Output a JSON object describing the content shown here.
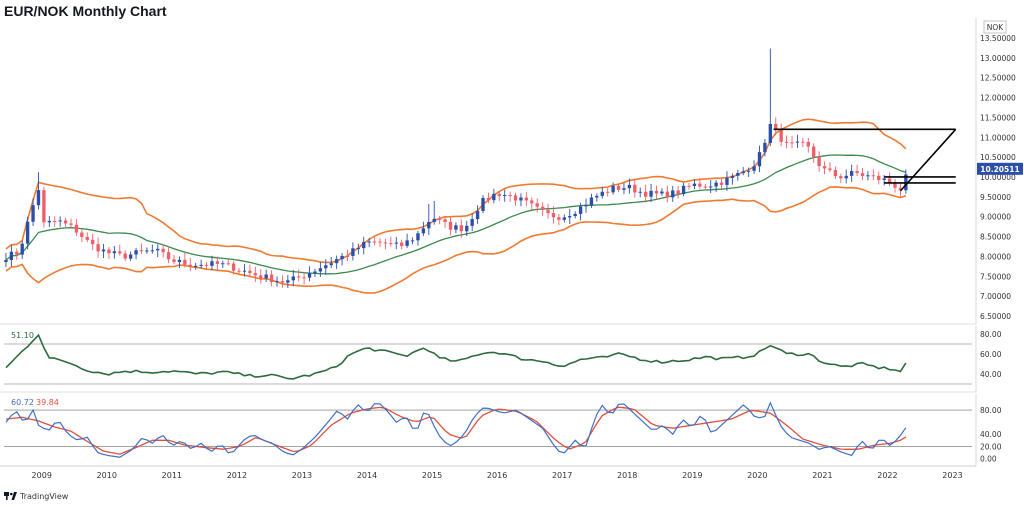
{
  "title": "EUR/NOK Monthly Chart",
  "currency_badge": "NOK",
  "last_price_label": "10.20511",
  "brand": "TradingView",
  "colors": {
    "up": "#2b4fa8",
    "down": "#ef5f6a",
    "bb_outer": "#f07a30",
    "bb_mid": "#3b8a4d",
    "rsi": "#2e6b3d",
    "stoch_k": "#3d6fc7",
    "stoch_d": "#e0503c",
    "levels": "#000000"
  },
  "chart_data": [
    {
      "type": "candlestick",
      "name": "price",
      "title": "EUR/NOK Monthly Chart",
      "x_labels": [
        "2009",
        "2010",
        "2011",
        "2012",
        "2013",
        "2014",
        "2015",
        "2016",
        "2017",
        "2018",
        "2019",
        "2020",
        "2021",
        "2022",
        "2023"
      ],
      "x_range": [
        2008.42,
        2023.3
      ],
      "y_ticks": [
        "13.50000",
        "13.00000",
        "12.50000",
        "12.00000",
        "11.50000",
        "11.00000",
        "10.50000",
        "10.00000",
        "9.50000",
        "9.00000",
        "8.50000",
        "8.00000",
        "7.50000",
        "7.00000",
        "6.50000"
      ],
      "ylim": [
        6.4,
        13.75
      ],
      "close_anchors": [
        [
          2008.45,
          8.0
        ],
        [
          2008.65,
          8.1
        ],
        [
          2008.85,
          9.2
        ],
        [
          2008.95,
          9.7
        ],
        [
          2009.0,
          8.8
        ],
        [
          2009.25,
          8.9
        ],
        [
          2009.5,
          8.7
        ],
        [
          2009.75,
          8.3
        ],
        [
          2010.0,
          8.1
        ],
        [
          2010.25,
          8.0
        ],
        [
          2010.5,
          8.1
        ],
        [
          2010.75,
          8.15
        ],
        [
          2011.0,
          7.9
        ],
        [
          2011.25,
          7.8
        ],
        [
          2011.5,
          7.8
        ],
        [
          2011.75,
          7.8
        ],
        [
          2012.0,
          7.7
        ],
        [
          2012.25,
          7.55
        ],
        [
          2012.5,
          7.45
        ],
        [
          2012.75,
          7.35
        ],
        [
          2013.0,
          7.5
        ],
        [
          2013.25,
          7.7
        ],
        [
          2013.5,
          7.9
        ],
        [
          2013.75,
          8.1
        ],
        [
          2014.0,
          8.35
        ],
        [
          2014.25,
          8.35
        ],
        [
          2014.5,
          8.25
        ],
        [
          2014.75,
          8.5
        ],
        [
          2015.0,
          9.0
        ],
        [
          2015.25,
          8.75
        ],
        [
          2015.5,
          8.7
        ],
        [
          2015.75,
          9.35
        ],
        [
          2016.0,
          9.6
        ],
        [
          2016.25,
          9.5
        ],
        [
          2016.5,
          9.3
        ],
        [
          2016.75,
          9.05
        ],
        [
          2017.0,
          9.0
        ],
        [
          2017.25,
          9.2
        ],
        [
          2017.5,
          9.5
        ],
        [
          2017.75,
          9.7
        ],
        [
          2018.0,
          9.75
        ],
        [
          2018.25,
          9.6
        ],
        [
          2018.5,
          9.55
        ],
        [
          2018.75,
          9.6
        ],
        [
          2019.0,
          9.8
        ],
        [
          2019.25,
          9.8
        ],
        [
          2019.5,
          9.9
        ],
        [
          2019.75,
          10.1
        ],
        [
          2020.0,
          10.4
        ],
        [
          2020.2,
          11.3
        ],
        [
          2020.45,
          10.8
        ],
        [
          2020.75,
          10.8
        ],
        [
          2021.0,
          10.2
        ],
        [
          2021.25,
          10.0
        ],
        [
          2021.5,
          10.1
        ],
        [
          2021.75,
          10.0
        ],
        [
          2022.0,
          9.9
        ],
        [
          2022.2,
          9.7
        ],
        [
          2022.35,
          10.2
        ]
      ],
      "overlays": [
        "Bollinger upper band",
        "Bollinger middle band",
        "Bollinger lower band"
      ],
      "horizontal_levels": [
        11.2,
        10.0,
        9.85
      ],
      "trend_line": [
        [
          2022.2,
          9.65
        ],
        [
          2023.05,
          11.2
        ]
      ]
    },
    {
      "type": "line",
      "name": "rsi",
      "value_label": "51.10",
      "y_ticks": [
        "80.00",
        "60.00",
        "40.00"
      ],
      "ylim": [
        26,
        84
      ],
      "reference_lines": [
        70,
        30
      ],
      "anchors": [
        [
          2008.45,
          46
        ],
        [
          2008.75,
          66
        ],
        [
          2008.95,
          80
        ],
        [
          2009.1,
          56
        ],
        [
          2009.4,
          52
        ],
        [
          2009.7,
          44
        ],
        [
          2010.0,
          40
        ],
        [
          2010.3,
          43
        ],
        [
          2010.7,
          42
        ],
        [
          2011.0,
          43
        ],
        [
          2011.4,
          40
        ],
        [
          2011.8,
          42
        ],
        [
          2012.2,
          38
        ],
        [
          2012.5,
          39
        ],
        [
          2012.8,
          35
        ],
        [
          2013.2,
          40
        ],
        [
          2013.5,
          46
        ],
        [
          2013.75,
          60
        ],
        [
          2014.0,
          66
        ],
        [
          2014.3,
          62
        ],
        [
          2014.6,
          58
        ],
        [
          2014.9,
          67
        ],
        [
          2015.1,
          56
        ],
        [
          2015.4,
          52
        ],
        [
          2015.75,
          61
        ],
        [
          2016.0,
          62
        ],
        [
          2016.4,
          55
        ],
        [
          2016.8,
          52
        ],
        [
          2017.0,
          47
        ],
        [
          2017.3,
          55
        ],
        [
          2017.6,
          56
        ],
        [
          2017.9,
          60
        ],
        [
          2018.2,
          55
        ],
        [
          2018.5,
          52
        ],
        [
          2018.9,
          54
        ],
        [
          2019.2,
          57
        ],
        [
          2019.5,
          55
        ],
        [
          2019.8,
          57
        ],
        [
          2020.0,
          60
        ],
        [
          2020.2,
          69
        ],
        [
          2020.45,
          60
        ],
        [
          2020.8,
          60
        ],
        [
          2021.0,
          52
        ],
        [
          2021.3,
          47
        ],
        [
          2021.6,
          50
        ],
        [
          2021.9,
          46
        ],
        [
          2022.1,
          45
        ],
        [
          2022.2,
          42
        ],
        [
          2022.35,
          51
        ]
      ]
    },
    {
      "type": "line",
      "name": "stochastic",
      "series_labels": [
        "60.72",
        "39.84"
      ],
      "y_ticks": [
        "80.00",
        "40.00",
        "20.00",
        "0.00"
      ],
      "ylim": [
        -6,
        100
      ],
      "reference_lines": [
        80,
        20
      ],
      "k_anchors": [
        [
          2008.45,
          60
        ],
        [
          2008.6,
          80
        ],
        [
          2008.75,
          55
        ],
        [
          2008.85,
          85
        ],
        [
          2008.95,
          55
        ],
        [
          2009.1,
          45
        ],
        [
          2009.25,
          65
        ],
        [
          2009.4,
          40
        ],
        [
          2009.55,
          30
        ],
        [
          2009.7,
          35
        ],
        [
          2009.85,
          10
        ],
        [
          2010.0,
          5
        ],
        [
          2010.2,
          2
        ],
        [
          2010.4,
          15
        ],
        [
          2010.55,
          35
        ],
        [
          2010.7,
          25
        ],
        [
          2010.85,
          40
        ],
        [
          2011.0,
          20
        ],
        [
          2011.15,
          30
        ],
        [
          2011.3,
          15
        ],
        [
          2011.45,
          25
        ],
        [
          2011.6,
          10
        ],
        [
          2011.75,
          25
        ],
        [
          2011.9,
          5
        ],
        [
          2012.1,
          30
        ],
        [
          2012.25,
          40
        ],
        [
          2012.4,
          30
        ],
        [
          2012.55,
          25
        ],
        [
          2012.7,
          12
        ],
        [
          2012.85,
          5
        ],
        [
          2013.0,
          15
        ],
        [
          2013.2,
          35
        ],
        [
          2013.4,
          60
        ],
        [
          2013.55,
          80
        ],
        [
          2013.7,
          65
        ],
        [
          2013.85,
          90
        ],
        [
          2014.0,
          75
        ],
        [
          2014.15,
          95
        ],
        [
          2014.3,
          80
        ],
        [
          2014.45,
          60
        ],
        [
          2014.6,
          70
        ],
        [
          2014.75,
          40
        ],
        [
          2014.9,
          85
        ],
        [
          2015.0,
          60
        ],
        [
          2015.15,
          30
        ],
        [
          2015.3,
          20
        ],
        [
          2015.5,
          40
        ],
        [
          2015.65,
          70
        ],
        [
          2015.8,
          85
        ],
        [
          2015.95,
          80
        ],
        [
          2016.1,
          75
        ],
        [
          2016.3,
          80
        ],
        [
          2016.5,
          65
        ],
        [
          2016.7,
          50
        ],
        [
          2016.85,
          25
        ],
        [
          2017.0,
          5
        ],
        [
          2017.2,
          30
        ],
        [
          2017.35,
          15
        ],
        [
          2017.5,
          65
        ],
        [
          2017.6,
          90
        ],
        [
          2017.75,
          70
        ],
        [
          2017.9,
          95
        ],
        [
          2018.05,
          80
        ],
        [
          2018.25,
          60
        ],
        [
          2018.4,
          45
        ],
        [
          2018.55,
          55
        ],
        [
          2018.7,
          40
        ],
        [
          2018.85,
          65
        ],
        [
          2019.0,
          50
        ],
        [
          2019.15,
          75
        ],
        [
          2019.3,
          40
        ],
        [
          2019.5,
          60
        ],
        [
          2019.65,
          75
        ],
        [
          2019.8,
          90
        ],
        [
          2019.95,
          70
        ],
        [
          2020.1,
          65
        ],
        [
          2020.2,
          92
        ],
        [
          2020.35,
          55
        ],
        [
          2020.5,
          35
        ],
        [
          2020.65,
          30
        ],
        [
          2020.8,
          25
        ],
        [
          2020.95,
          15
        ],
        [
          2021.1,
          20
        ],
        [
          2021.3,
          10
        ],
        [
          2021.45,
          5
        ],
        [
          2021.6,
          30
        ],
        [
          2021.75,
          12
        ],
        [
          2021.9,
          35
        ],
        [
          2022.05,
          20
        ],
        [
          2022.2,
          38
        ],
        [
          2022.35,
          61
        ]
      ],
      "d_anchors": [
        [
          2008.45,
          65
        ],
        [
          2008.7,
          68
        ],
        [
          2008.95,
          62
        ],
        [
          2009.2,
          52
        ],
        [
          2009.45,
          45
        ],
        [
          2009.7,
          28
        ],
        [
          2009.95,
          12
        ],
        [
          2010.2,
          7
        ],
        [
          2010.45,
          18
        ],
        [
          2010.7,
          30
        ],
        [
          2010.95,
          30
        ],
        [
          2011.2,
          22
        ],
        [
          2011.5,
          18
        ],
        [
          2011.8,
          15
        ],
        [
          2012.05,
          20
        ],
        [
          2012.3,
          35
        ],
        [
          2012.6,
          22
        ],
        [
          2012.9,
          10
        ],
        [
          2013.15,
          22
        ],
        [
          2013.45,
          55
        ],
        [
          2013.75,
          75
        ],
        [
          2014.0,
          82
        ],
        [
          2014.25,
          85
        ],
        [
          2014.5,
          70
        ],
        [
          2014.75,
          60
        ],
        [
          2015.0,
          70
        ],
        [
          2015.25,
          40
        ],
        [
          2015.5,
          32
        ],
        [
          2015.75,
          70
        ],
        [
          2016.0,
          82
        ],
        [
          2016.3,
          78
        ],
        [
          2016.6,
          62
        ],
        [
          2016.9,
          30
        ],
        [
          2017.1,
          15
        ],
        [
          2017.35,
          25
        ],
        [
          2017.6,
          70
        ],
        [
          2017.85,
          85
        ],
        [
          2018.1,
          82
        ],
        [
          2018.4,
          55
        ],
        [
          2018.7,
          50
        ],
        [
          2019.0,
          55
        ],
        [
          2019.3,
          60
        ],
        [
          2019.6,
          65
        ],
        [
          2019.9,
          80
        ],
        [
          2020.2,
          75
        ],
        [
          2020.45,
          55
        ],
        [
          2020.7,
          32
        ],
        [
          2021.0,
          22
        ],
        [
          2021.3,
          15
        ],
        [
          2021.55,
          15
        ],
        [
          2021.8,
          22
        ],
        [
          2022.05,
          25
        ],
        [
          2022.2,
          30
        ],
        [
          2022.35,
          40
        ]
      ]
    }
  ]
}
